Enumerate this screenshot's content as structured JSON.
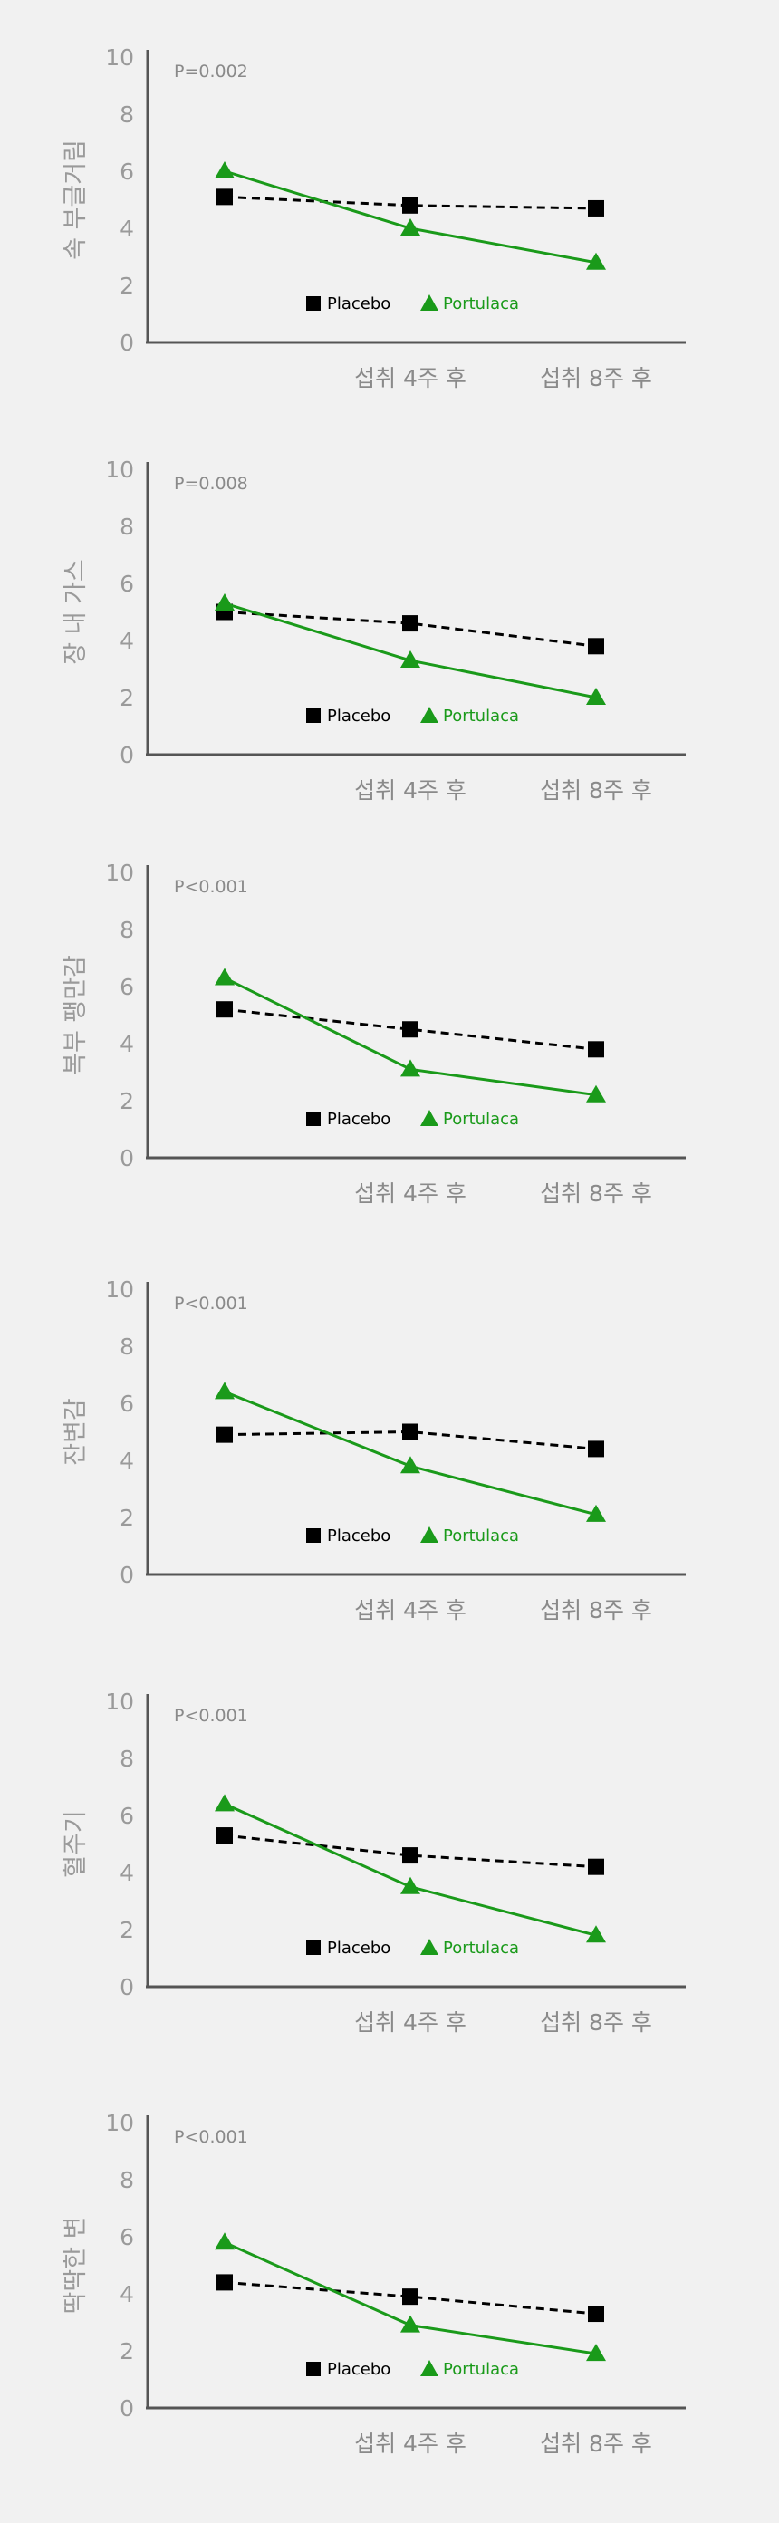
{
  "colors": {
    "placebo": "#000000",
    "portulaca": "#1a9a1a",
    "axis": "#555555",
    "text": "#999999"
  },
  "chart_data": [
    {
      "type": "line",
      "title": "",
      "ylabel": "속 부글거림",
      "pvalue": "P=0.002",
      "ylim": [
        0,
        10
      ],
      "yticks": [
        0,
        2,
        4,
        6,
        8,
        10
      ],
      "categories": [
        "",
        "섭취 4주 후",
        "섭취 8주 후"
      ],
      "legend_position": "bottom-center",
      "series": [
        {
          "name": "Placebo",
          "marker": "square",
          "style": "dashed",
          "values": [
            5.1,
            4.8,
            4.7
          ]
        },
        {
          "name": "Portulaca",
          "marker": "triangle",
          "style": "solid",
          "values": [
            6.0,
            4.0,
            2.8
          ]
        }
      ]
    },
    {
      "type": "line",
      "title": "",
      "ylabel": "장 내 가스",
      "pvalue": "P=0.008",
      "ylim": [
        0,
        10
      ],
      "yticks": [
        0,
        2,
        4,
        6,
        8,
        10
      ],
      "categories": [
        "",
        "섭취 4주 후",
        "섭취 8주 후"
      ],
      "legend_position": "bottom-center",
      "series": [
        {
          "name": "Placebo",
          "marker": "square",
          "style": "dashed",
          "values": [
            5.0,
            4.6,
            3.8
          ]
        },
        {
          "name": "Portulaca",
          "marker": "triangle",
          "style": "solid",
          "values": [
            5.3,
            3.3,
            2.0
          ]
        }
      ]
    },
    {
      "type": "line",
      "title": "",
      "ylabel": "복부 팽만감",
      "pvalue": "P<0.001",
      "ylim": [
        0,
        10
      ],
      "yticks": [
        0,
        2,
        4,
        6,
        8,
        10
      ],
      "categories": [
        "",
        "섭취 4주 후",
        "섭취 8주 후"
      ],
      "legend_position": "bottom-center",
      "series": [
        {
          "name": "Placebo",
          "marker": "square",
          "style": "dashed",
          "values": [
            5.2,
            4.5,
            3.8
          ]
        },
        {
          "name": "Portulaca",
          "marker": "triangle",
          "style": "solid",
          "values": [
            6.3,
            3.1,
            2.2
          ]
        }
      ]
    },
    {
      "type": "line",
      "title": "",
      "ylabel": "잔변감",
      "pvalue": "P<0.001",
      "ylim": [
        0,
        10
      ],
      "yticks": [
        0,
        2,
        4,
        6,
        8,
        10
      ],
      "categories": [
        "",
        "섭취 4주 후",
        "섭취 8주 후"
      ],
      "legend_position": "bottom-center",
      "series": [
        {
          "name": "Placebo",
          "marker": "square",
          "style": "dashed",
          "values": [
            4.9,
            5.0,
            4.4
          ]
        },
        {
          "name": "Portulaca",
          "marker": "triangle",
          "style": "solid",
          "values": [
            6.4,
            3.8,
            2.1
          ]
        }
      ]
    },
    {
      "type": "line",
      "title": "",
      "ylabel": "혈주기",
      "pvalue": "P<0.001",
      "ylim": [
        0,
        10
      ],
      "yticks": [
        0,
        2,
        4,
        6,
        8,
        10
      ],
      "categories": [
        "",
        "섭취 4주 후",
        "섭취 8주 후"
      ],
      "legend_position": "bottom-center",
      "series": [
        {
          "name": "Placebo",
          "marker": "square",
          "style": "dashed",
          "values": [
            5.3,
            4.6,
            4.2
          ]
        },
        {
          "name": "Portulaca",
          "marker": "triangle",
          "style": "solid",
          "values": [
            6.4,
            3.5,
            1.8
          ]
        }
      ]
    },
    {
      "type": "line",
      "title": "",
      "ylabel": "딱딱한 변",
      "pvalue": "P<0.001",
      "ylim": [
        0,
        10
      ],
      "yticks": [
        0,
        2,
        4,
        6,
        8,
        10
      ],
      "categories": [
        "",
        "섭취 4주 후",
        "섭취 8주 후"
      ],
      "legend_position": "bottom-center",
      "series": [
        {
          "name": "Placebo",
          "marker": "square",
          "style": "dashed",
          "values": [
            4.4,
            3.9,
            3.3
          ]
        },
        {
          "name": "Portulaca",
          "marker": "triangle",
          "style": "solid",
          "values": [
            5.8,
            2.9,
            1.9
          ]
        }
      ]
    }
  ]
}
